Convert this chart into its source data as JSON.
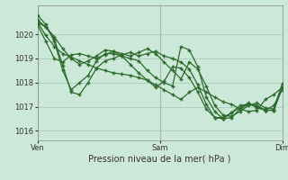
{
  "background_color": "#cce8d8",
  "plot_bg_color": "#cce8d8",
  "grid_color": "#aaccbb",
  "line_color": "#2d6a2d",
  "marker_color": "#2d6a2d",
  "xlabel": "Pression niveau de la mer( hPa )",
  "ylim": [
    1015.6,
    1021.2
  ],
  "yticks": [
    1016,
    1017,
    1018,
    1019,
    1020
  ],
  "xtick_labels": [
    "Ven",
    "Sam",
    "Dim"
  ],
  "xtick_positions": [
    0,
    0.5,
    1.0
  ],
  "series": [
    [
      1020.5,
      1019.95,
      1019.5,
      1019.2,
      1019.05,
      1018.9,
      1018.75,
      1018.6,
      1018.5,
      1018.4,
      1018.35,
      1018.3,
      1018.2,
      1018.1,
      1017.9,
      1017.7,
      1017.5,
      1017.3,
      1017.6,
      1017.8,
      1017.6,
      1017.4,
      1017.2,
      1017.1,
      1016.9,
      1016.8,
      1016.85,
      1017.3,
      1017.5,
      1017.8
    ],
    [
      1020.5,
      1020.3,
      1019.8,
      1018.7,
      1017.6,
      1017.5,
      1018.0,
      1018.6,
      1018.9,
      1019.0,
      1019.15,
      1019.25,
      1019.1,
      1019.2,
      1019.3,
      1019.1,
      1019.0,
      1018.85,
      1018.55,
      1017.9,
      1017.1,
      1016.55,
      1016.5,
      1016.75,
      1017.05,
      1017.1,
      1017.0,
      1016.85,
      1016.85,
      1017.8
    ],
    [
      1020.8,
      1020.4,
      1019.7,
      1018.5,
      1017.7,
      1018.0,
      1018.3,
      1018.9,
      1019.2,
      1019.2,
      1019.1,
      1019.0,
      1018.9,
      1018.5,
      1018.2,
      1018.0,
      1017.85,
      1019.5,
      1019.35,
      1018.65,
      1017.4,
      1016.8,
      1016.5,
      1016.55,
      1016.9,
      1017.1,
      1017.05,
      1016.85,
      1016.85,
      1017.8
    ],
    [
      1020.6,
      1020.3,
      1019.9,
      1019.4,
      1019.0,
      1018.75,
      1018.9,
      1019.1,
      1019.35,
      1019.3,
      1019.2,
      1019.1,
      1019.25,
      1019.4,
      1019.2,
      1018.85,
      1018.5,
      1018.15,
      1018.85,
      1018.55,
      1017.85,
      1017.05,
      1016.65,
      1016.6,
      1016.8,
      1017.05,
      1017.15,
      1016.95,
      1016.9,
      1017.95
    ],
    [
      1020.4,
      1019.7,
      1019.0,
      1018.85,
      1019.15,
      1019.2,
      1019.1,
      1019.0,
      1019.15,
      1019.3,
      1019.1,
      1018.75,
      1018.4,
      1018.1,
      1017.8,
      1018.05,
      1018.65,
      1018.6,
      1018.2,
      1017.6,
      1016.9,
      1016.55,
      1016.55,
      1016.75,
      1016.95,
      1017.15,
      1016.95,
      1016.85,
      1017.05,
      1017.7
    ]
  ]
}
